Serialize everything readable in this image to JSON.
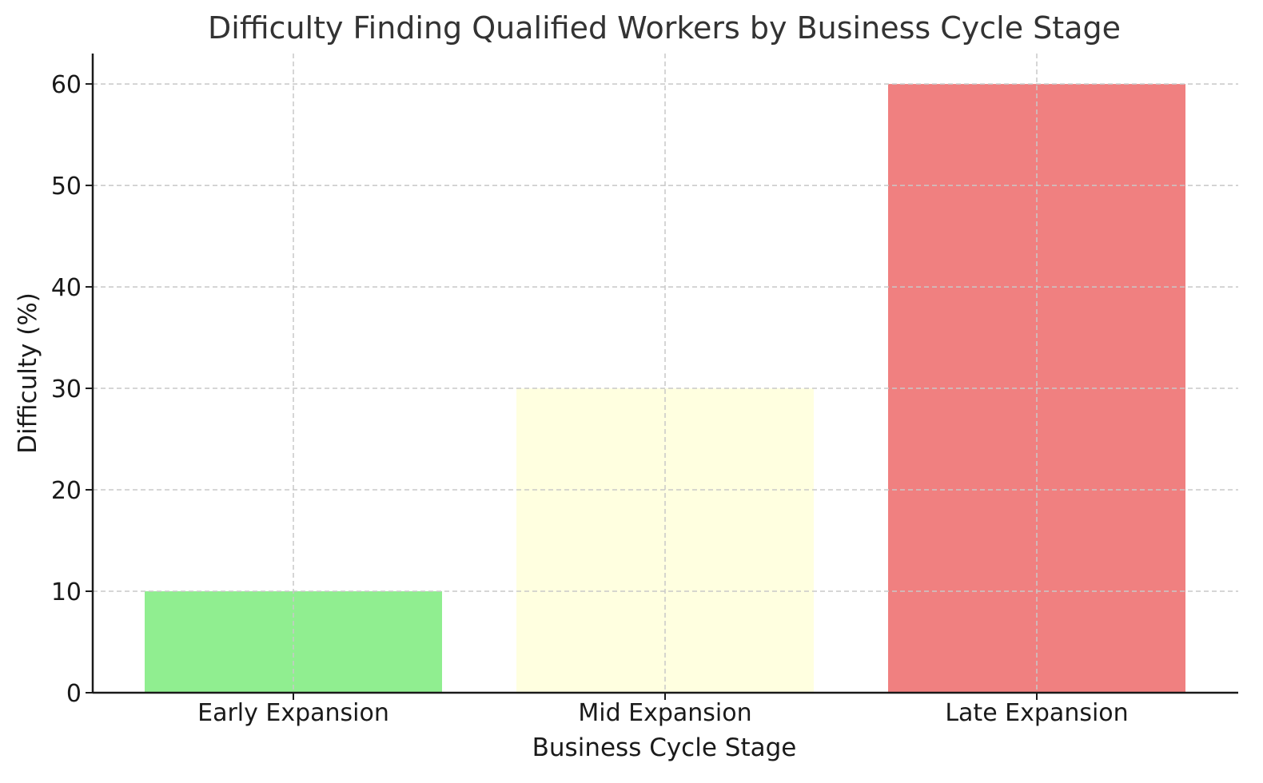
{
  "chart_data": {
    "type": "bar",
    "title": "Difficulty Finding Qualified Workers by Business Cycle Stage",
    "xlabel": "Business Cycle Stage",
    "ylabel": "Difficulty (%)",
    "categories": [
      "Early Expansion",
      "Mid Expansion",
      "Late Expansion"
    ],
    "values": [
      10,
      30,
      60
    ],
    "colors": [
      "#90ee90",
      "#ffffe0",
      "#f08080"
    ],
    "ylim": [
      0,
      63
    ],
    "yticks": [
      0,
      10,
      20,
      30,
      40,
      50,
      60
    ],
    "grid": true,
    "legend": false
  }
}
